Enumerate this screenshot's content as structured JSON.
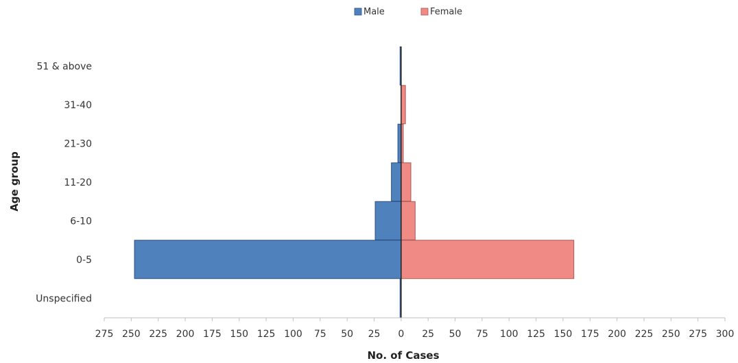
{
  "chart_data": {
    "type": "bar",
    "orientation": "horizontal-diverging",
    "title": "",
    "xlabel": "No. of Cases",
    "ylabel": "Age group",
    "categories": [
      "51 & above",
      "31-40",
      "21-30",
      "11-20",
      "6-10",
      "0-5",
      "Unspecified"
    ],
    "series": [
      {
        "name": "Male",
        "color": "#4f81bd",
        "direction": "left",
        "values": [
          1,
          0,
          3,
          9,
          24,
          247,
          1
        ]
      },
      {
        "name": "Female",
        "color": "#f08a85",
        "direction": "right",
        "values": [
          0,
          4,
          2,
          9,
          13,
          160,
          0
        ]
      }
    ],
    "xticks": [
      "275",
      "250",
      "225",
      "200",
      "175",
      "150",
      "125",
      "100",
      "75",
      "50",
      "25",
      "0",
      "25",
      "50",
      "75",
      "100",
      "125",
      "150",
      "175",
      "200",
      "225",
      "250",
      "275",
      "300"
    ],
    "xlim": [
      -275,
      300
    ],
    "legend_position": "top-center",
    "grid": false
  }
}
